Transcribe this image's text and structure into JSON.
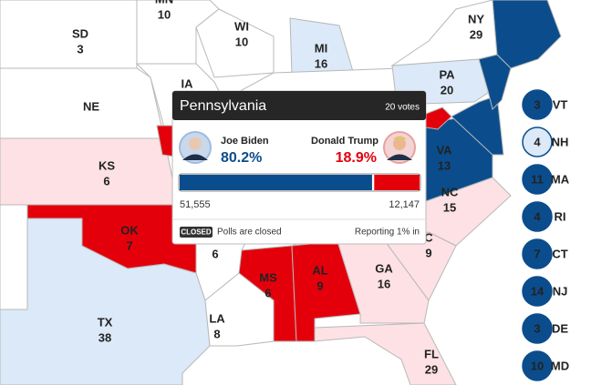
{
  "map": {
    "states": [
      {
        "abbr": "MN",
        "votes": 10
      },
      {
        "abbr": "SD",
        "votes": 3
      },
      {
        "abbr": "WI",
        "votes": 10
      },
      {
        "abbr": "NY",
        "votes": 29
      },
      {
        "abbr": "MI",
        "votes": 16
      },
      {
        "abbr": "PA",
        "votes": 20
      },
      {
        "abbr": "IA"
      },
      {
        "abbr": "NE"
      },
      {
        "abbr": "KS",
        "votes": 6
      },
      {
        "abbr": "VA",
        "votes": 13
      },
      {
        "abbr": "NC",
        "votes": 15
      },
      {
        "abbr": "OK",
        "votes": 7
      },
      {
        "votes": 6
      },
      {
        "abbr": "C",
        "votes": 9
      },
      {
        "abbr": "MS",
        "votes": 6
      },
      {
        "abbr": "AL",
        "votes": 9
      },
      {
        "abbr": "GA",
        "votes": 16
      },
      {
        "abbr": "TX",
        "votes": 38
      },
      {
        "abbr": "LA",
        "votes": 8
      },
      {
        "abbr": "FL",
        "votes": 29
      }
    ],
    "small_states": [
      {
        "abbr": "VT",
        "votes": 3,
        "color": "#0b4d8c"
      },
      {
        "abbr": "NH",
        "votes": 4,
        "color": "#dbe9f8"
      },
      {
        "abbr": "MA",
        "votes": 11,
        "color": "#0b4d8c"
      },
      {
        "abbr": "RI",
        "votes": 4,
        "color": "#0b4d8c"
      },
      {
        "abbr": "CT",
        "votes": 7,
        "color": "#0b4d8c"
      },
      {
        "abbr": "NJ",
        "votes": 14,
        "color": "#0b4d8c"
      },
      {
        "abbr": "DE",
        "votes": 3,
        "color": "#0b4d8c"
      },
      {
        "abbr": "MD",
        "votes": 10,
        "color": "#0b4d8c"
      }
    ],
    "tooltip": {
      "title": "Pennsylvania",
      "votes_label": "20 votes",
      "candidates": [
        {
          "name": "Joe Biden",
          "percent": 80.2,
          "percent_label": "80.2%",
          "votes": "51,555",
          "color": "#0b4d8c"
        },
        {
          "name": "Donald Trump",
          "percent": 18.9,
          "percent_label": "18.9%",
          "votes": "12,147",
          "color": "#e4000b"
        }
      ],
      "status_badge": "CLOSED",
      "status": "Polls are closed",
      "reporting": "Reporting 1% in"
    }
  }
}
